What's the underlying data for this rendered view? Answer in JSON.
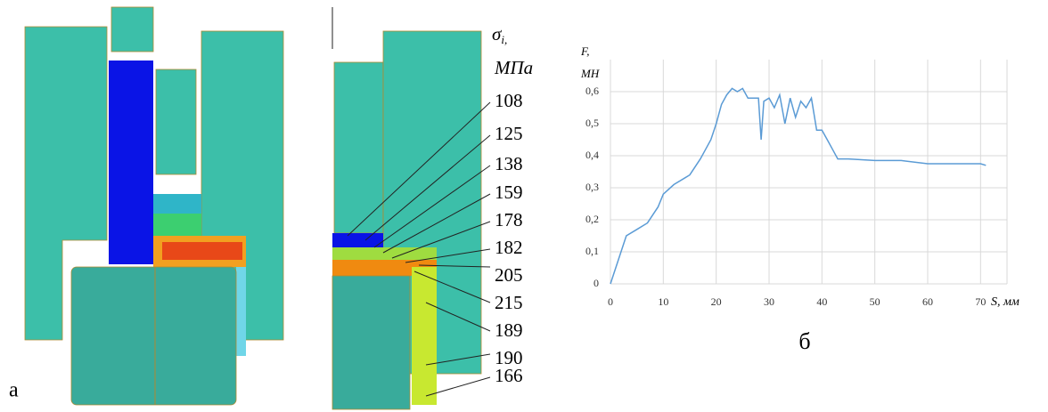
{
  "figure": {
    "panel_a": "а",
    "stress_symbol": "σ",
    "stress_index": "i,",
    "stress_unit": "МПа",
    "stress_labels": [
      108,
      125,
      138,
      159,
      178,
      182,
      205,
      215,
      189,
      190,
      166
    ]
  },
  "chart_data": {
    "type": "line",
    "annotation": "б",
    "y_label_symbol": "F,",
    "y_label_unit": "МН",
    "x_label": "S, мм",
    "x": [
      0,
      3,
      5,
      7,
      9,
      10,
      12,
      14,
      15,
      17,
      18,
      19,
      20,
      21,
      22,
      23,
      24,
      25,
      26,
      27,
      28,
      28.5,
      29,
      30,
      31,
      32,
      33,
      34,
      35,
      36,
      37,
      38,
      39,
      40,
      41,
      42,
      43,
      45,
      50,
      55,
      60,
      65,
      70,
      71
    ],
    "values": [
      0,
      0.15,
      0.17,
      0.19,
      0.24,
      0.28,
      0.31,
      0.33,
      0.34,
      0.39,
      0.42,
      0.45,
      0.5,
      0.56,
      0.59,
      0.61,
      0.6,
      0.61,
      0.58,
      0.58,
      0.58,
      0.45,
      0.57,
      0.58,
      0.55,
      0.59,
      0.5,
      0.58,
      0.52,
      0.57,
      0.55,
      0.58,
      0.48,
      0.48,
      0.45,
      0.42,
      0.39,
      0.39,
      0.385,
      0.385,
      0.375,
      0.375,
      0.375,
      0.37
    ],
    "color": "#5b9bd5",
    "grid": true,
    "xlim": [
      0,
      75
    ],
    "xticks": [
      0,
      10,
      20,
      30,
      40,
      50,
      60,
      70
    ],
    "ylim": [
      0,
      0.7
    ],
    "yticks": [
      0,
      {
        "value": 0.1,
        "label": "0,1"
      },
      {
        "value": 0.2,
        "label": "0,2"
      },
      {
        "value": 0.3,
        "label": "0,3"
      },
      {
        "value": 0.4,
        "label": "0,4"
      },
      {
        "value": 0.5,
        "label": "0,5"
      },
      {
        "value": 0.6,
        "label": "0,6"
      }
    ]
  }
}
